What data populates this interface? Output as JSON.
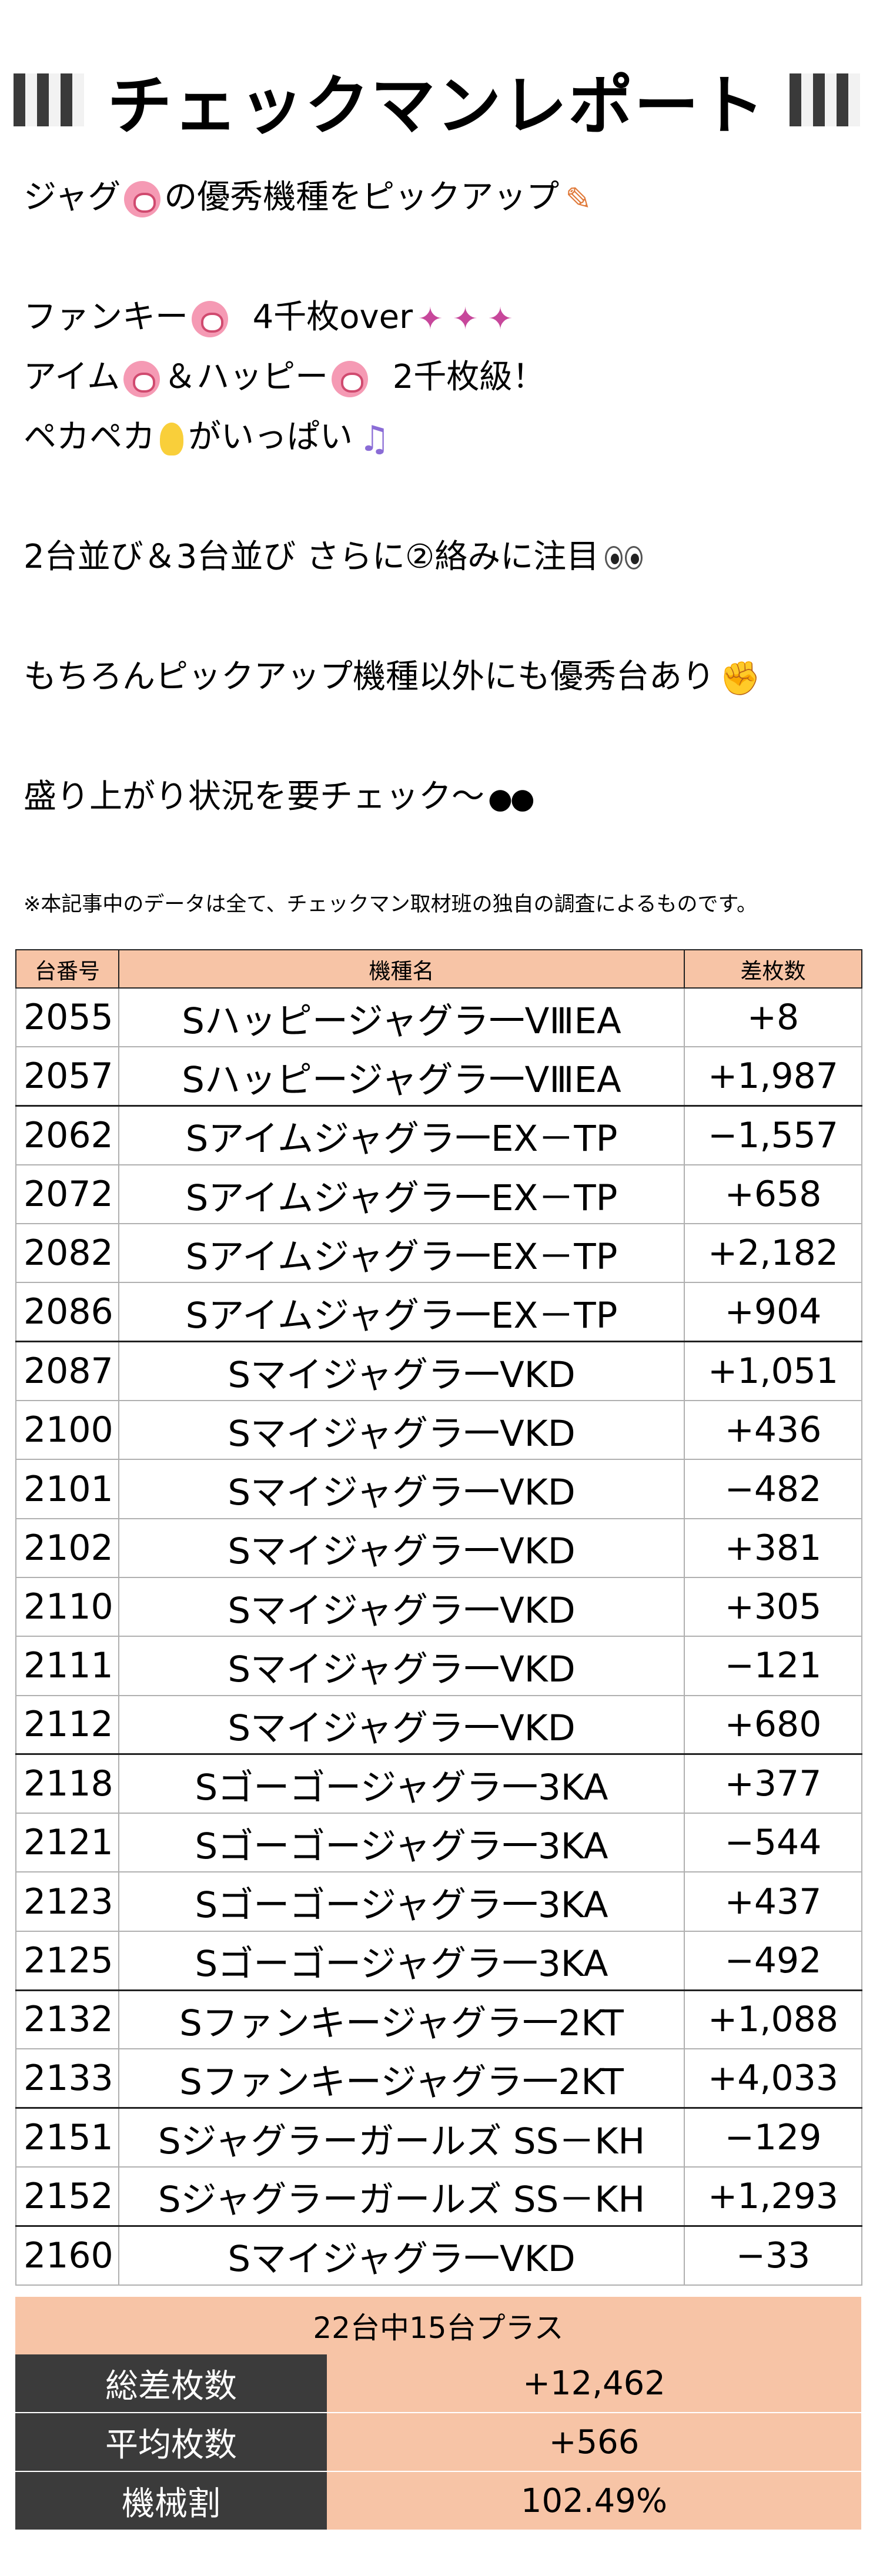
{
  "title": "チェックマンレポート",
  "intro": {
    "line1": "ジャグ",
    "line1b": "の優秀機種をピックアップ",
    "line2a": "ファンキー",
    "line2b": "4千枚over",
    "line3a": "アイム",
    "line3b": "＆ハッピー",
    "line3c": "2千枚級！",
    "line4a": "ペカペカ",
    "line4b": "がいっぱい",
    "line5": "2台並び＆3台並び さらに②絡みに注目",
    "line6": "もちろんピックアップ機種以外にも優秀台あり",
    "line7": "盛り上がり状況を要チェック～"
  },
  "disclaimer": "※本記事中のデータは全て、チェックマン取材班の独自の調査によるものです。",
  "table": {
    "headers": [
      "台番号",
      "機種名",
      "差枚数"
    ],
    "rows": [
      {
        "no": "2055",
        "machine": "Sハッピージャグラ一VⅢEA",
        "diff": "+8"
      },
      {
        "no": "2057",
        "machine": "Sハッピージャグラ一VⅢEA",
        "diff": "+1,987"
      },
      {
        "no": "2062",
        "machine": "Sアイムジャグラ一EX－TP",
        "diff": "−1,557"
      },
      {
        "no": "2072",
        "machine": "Sアイムジャグラ一EX－TP",
        "diff": "+658"
      },
      {
        "no": "2082",
        "machine": "Sアイムジャグラ一EX－TP",
        "diff": "+2,182"
      },
      {
        "no": "2086",
        "machine": "Sアイムジャグラ一EX－TP",
        "diff": "+904"
      },
      {
        "no": "2087",
        "machine": "Sマイジャグラ一VKD",
        "diff": "+1,051"
      },
      {
        "no": "2100",
        "machine": "Sマイジャグラ一VKD",
        "diff": "+436"
      },
      {
        "no": "2101",
        "machine": "Sマイジャグラ一VKD",
        "diff": "−482"
      },
      {
        "no": "2102",
        "machine": "Sマイジャグラ一VKD",
        "diff": "+381"
      },
      {
        "no": "2110",
        "machine": "Sマイジャグラ一VKD",
        "diff": "+305"
      },
      {
        "no": "2111",
        "machine": "Sマイジャグラ一VKD",
        "diff": "−121"
      },
      {
        "no": "2112",
        "machine": "Sマイジャグラ一VKD",
        "diff": "+680"
      },
      {
        "no": "2118",
        "machine": "Sゴーゴージャグラ一3KA",
        "diff": "+377"
      },
      {
        "no": "2121",
        "machine": "Sゴーゴージャグラ一3KA",
        "diff": "−544"
      },
      {
        "no": "2123",
        "machine": "Sゴーゴージャグラ一3KA",
        "diff": "+437"
      },
      {
        "no": "2125",
        "machine": "Sゴーゴージャグラ一3KA",
        "diff": "−492"
      },
      {
        "no": "2132",
        "machine": "Sファンキージャグラ一2KT",
        "diff": "+1,088"
      },
      {
        "no": "2133",
        "machine": "Sファンキージャグラ一2KT",
        "diff": "+4,033"
      },
      {
        "no": "2151",
        "machine": "Sジャグラーガールズ SS－KH",
        "diff": "−129"
      },
      {
        "no": "2152",
        "machine": "Sジャグラーガールズ SS－KH",
        "diff": "+1,293"
      },
      {
        "no": "2160",
        "machine": "Sマイジャグラ一VKD",
        "diff": "−33"
      }
    ]
  },
  "summary": {
    "header": "22台中15台プラス",
    "rows": [
      {
        "label": "総差枚数",
        "value": "+12,462"
      },
      {
        "label": "平均枚数",
        "value": "+566"
      },
      {
        "label": "機械割",
        "value": "102.49%"
      }
    ]
  },
  "colors": {
    "accent": "#f7c4a6",
    "dark": "#3b3b3b"
  },
  "icons": [
    "checkered-flag-icon",
    "pig-face-icon",
    "memo-icon",
    "party-popper-icon",
    "lightbulb-icon",
    "music-note-icon",
    "eyes-icon",
    "flexed-biceps-icon",
    "sunglasses-icon"
  ]
}
